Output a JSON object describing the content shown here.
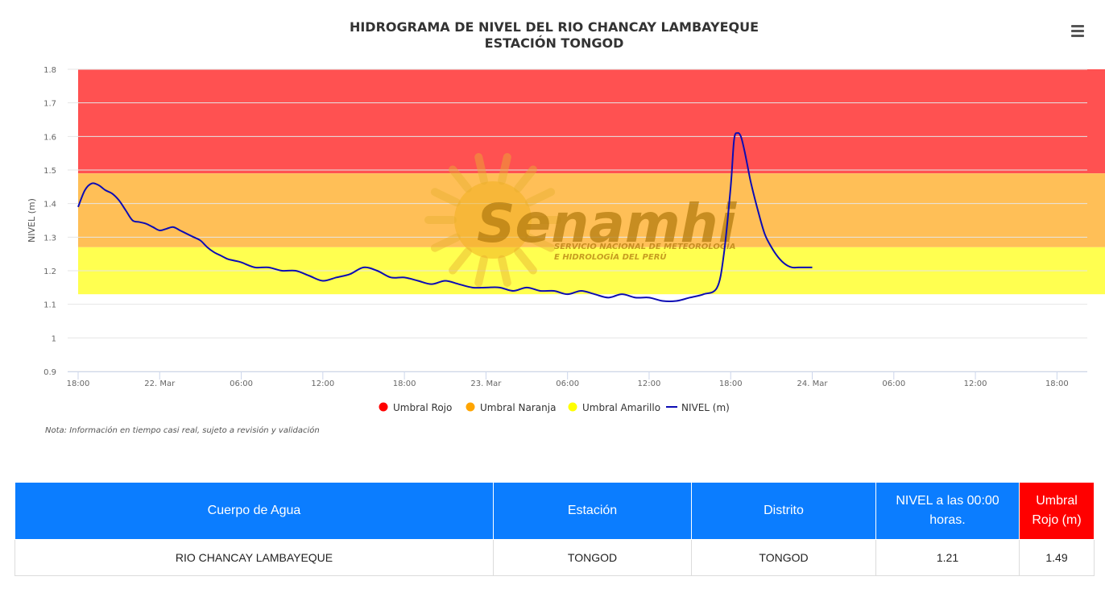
{
  "chart_data": {
    "type": "line",
    "title": "HIDROGRAMA DE NIVEL DEL RIO CHANCAY LAMBAYEQUE",
    "subtitle": "ESTACIÓN TONGOD",
    "ylabel": "NIVEL (m)",
    "xlabel": "",
    "ylim": [
      0.9,
      1.8
    ],
    "yticks": [
      "0.9",
      "1",
      "1.1",
      "1.2",
      "1.3",
      "1.4",
      "1.5",
      "1.6",
      "1.7",
      "1.8"
    ],
    "x_unit": "hours since 21 Mar 18:00",
    "xlim": [
      0,
      75
    ],
    "xticks": [
      {
        "x": 0,
        "label": "18:00"
      },
      {
        "x": 6,
        "label": "22. Mar"
      },
      {
        "x": 12,
        "label": "06:00"
      },
      {
        "x": 18,
        "label": "12:00"
      },
      {
        "x": 24,
        "label": "18:00"
      },
      {
        "x": 30,
        "label": "23. Mar"
      },
      {
        "x": 36,
        "label": "06:00"
      },
      {
        "x": 42,
        "label": "12:00"
      },
      {
        "x": 48,
        "label": "18:00"
      },
      {
        "x": 54,
        "label": "24. Mar"
      },
      {
        "x": 60,
        "label": "06:00"
      },
      {
        "x": 66,
        "label": "12:00"
      },
      {
        "x": 72,
        "label": "18:00"
      }
    ],
    "bands": [
      {
        "name": "Umbral Rojo",
        "from": 1.49,
        "to": 1.8,
        "color": "#ff5151"
      },
      {
        "name": "Umbral Naranja",
        "from": 1.27,
        "to": 1.49,
        "color": "#ffbf57"
      },
      {
        "name": "Umbral Amarillo",
        "from": 1.13,
        "to": 1.27,
        "color": "#ffff50"
      }
    ],
    "series": [
      {
        "name": "NIVEL (m)",
        "color": "#0c0cb4",
        "x": [
          0,
          0.5,
          1,
          1.5,
          2,
          2.5,
          3,
          3.5,
          4,
          4.5,
          5,
          5.5,
          6,
          6.5,
          7,
          7.5,
          8,
          8.5,
          9,
          9.5,
          10,
          10.5,
          11,
          11.5,
          12,
          13,
          14,
          15,
          16,
          17,
          18,
          19,
          20,
          21,
          22,
          23,
          24,
          25,
          26,
          27,
          28,
          29,
          30,
          31,
          32,
          33,
          34,
          35,
          36,
          37,
          38,
          39,
          40,
          41,
          42,
          43,
          44,
          45,
          46,
          47,
          47.5,
          48,
          48.25,
          48.5,
          48.75,
          49,
          49.25,
          49.5,
          50,
          50.5,
          51,
          51.5,
          52,
          52.5,
          53,
          53.5,
          54
        ],
        "values": [
          1.39,
          1.44,
          1.46,
          1.455,
          1.44,
          1.43,
          1.41,
          1.38,
          1.35,
          1.345,
          1.34,
          1.33,
          1.32,
          1.325,
          1.33,
          1.32,
          1.31,
          1.3,
          1.29,
          1.27,
          1.255,
          1.245,
          1.235,
          1.23,
          1.225,
          1.21,
          1.21,
          1.2,
          1.2,
          1.185,
          1.17,
          1.18,
          1.19,
          1.21,
          1.2,
          1.18,
          1.18,
          1.17,
          1.16,
          1.17,
          1.16,
          1.15,
          1.15,
          1.15,
          1.14,
          1.15,
          1.14,
          1.14,
          1.13,
          1.14,
          1.13,
          1.12,
          1.13,
          1.12,
          1.12,
          1.11,
          1.11,
          1.12,
          1.13,
          1.15,
          1.25,
          1.45,
          1.59,
          1.61,
          1.6,
          1.56,
          1.51,
          1.46,
          1.38,
          1.31,
          1.27,
          1.24,
          1.22,
          1.21,
          1.21,
          1.21,
          1.21
        ]
      }
    ],
    "legend": [
      {
        "name": "Umbral Rojo",
        "color": "#ff0000",
        "symbol": "circle"
      },
      {
        "name": "Umbral Naranja",
        "color": "#ffa500",
        "symbol": "circle"
      },
      {
        "name": "Umbral Amarillo",
        "color": "#ffff00",
        "symbol": "circle"
      },
      {
        "name": "NIVEL (m)",
        "color": "#0c0cb4",
        "symbol": "line"
      }
    ],
    "legend_position": "bottom-center",
    "grid": true
  },
  "watermark": {
    "brand": "Senamhi",
    "line1": "SERVICIO NACIONAL DE METEOROLOGÍA",
    "line2": "E HIDROLOGÍA DEL PERÚ"
  },
  "note": "Nota: Información en tiempo casi real, sujeto a revisión y validación",
  "menu_icon": "hamburger-menu-icon",
  "table": {
    "headers": [
      "Cuerpo de Agua",
      "Estación",
      "Distrito",
      "NIVEL a las 00:00 horas.",
      "Umbral Rojo (m)"
    ],
    "header_colors": [
      "#0b7dff",
      "#0b7dff",
      "#0b7dff",
      "#0b7dff",
      "#ff0000"
    ],
    "row": [
      "RIO CHANCAY LAMBAYEQUE",
      "TONGOD",
      "TONGOD",
      "1.21",
      "1.49"
    ]
  }
}
